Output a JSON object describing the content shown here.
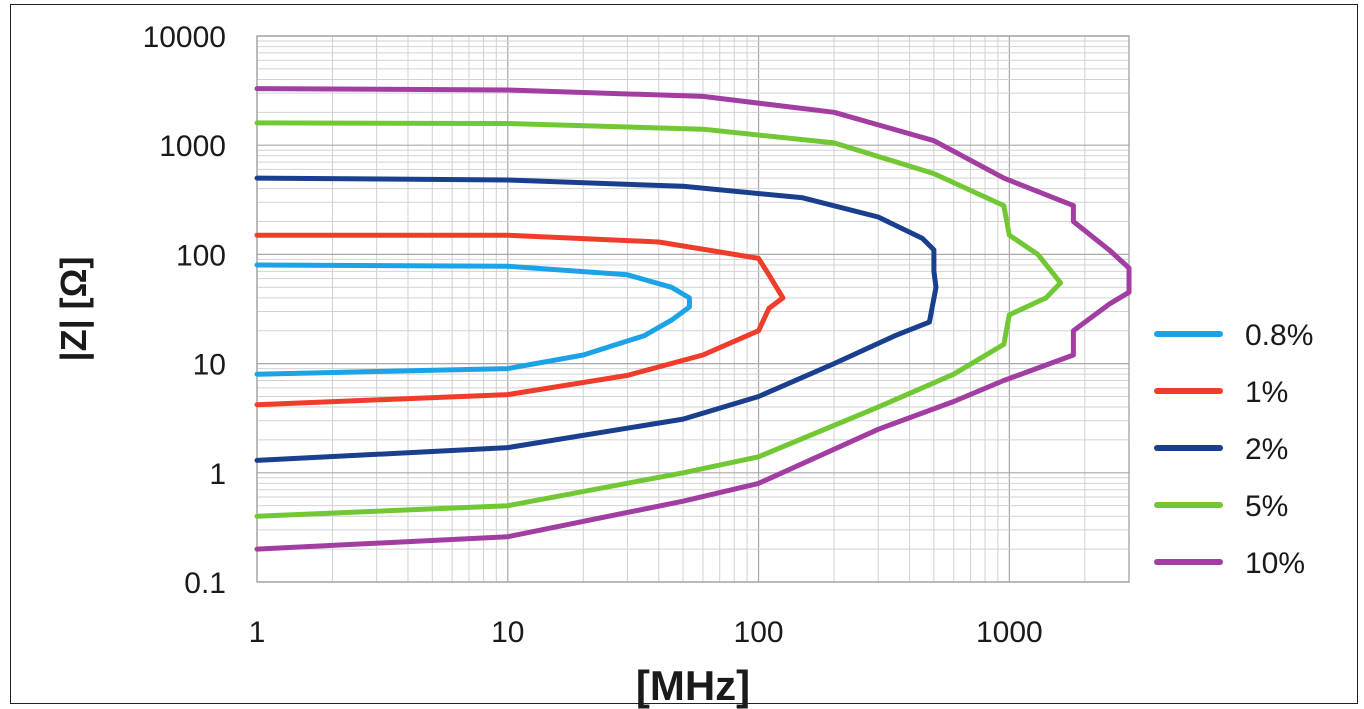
{
  "chart_data": {
    "type": "line",
    "xlabel": "[MHz]",
    "ylabel": "|Z| [Ω]",
    "x_scale": "log",
    "y_scale": "log",
    "xlim": [
      1,
      3000
    ],
    "ylim": [
      0.1,
      10000
    ],
    "grid": true,
    "legend_position": "right",
    "x_ticks": [
      "1",
      "10",
      "100",
      "1000"
    ],
    "y_ticks": [
      "10000",
      "1000",
      "100",
      "10",
      "1",
      "0.1"
    ],
    "series": [
      {
        "name": "0.8%",
        "color": "#1ba3e6",
        "upper": [
          [
            1,
            80
          ],
          [
            10,
            78
          ],
          [
            30,
            65
          ],
          [
            45,
            50
          ],
          [
            53,
            40
          ]
        ],
        "lower": [
          [
            1,
            8
          ],
          [
            10,
            9
          ],
          [
            20,
            12
          ],
          [
            35,
            18
          ],
          [
            45,
            25
          ],
          [
            53,
            33
          ]
        ]
      },
      {
        "name": "1%",
        "color": "#f03c2a",
        "upper": [
          [
            1,
            150
          ],
          [
            10,
            150
          ],
          [
            40,
            130
          ],
          [
            80,
            100
          ],
          [
            100,
            92
          ],
          [
            110,
            65
          ],
          [
            125,
            40
          ]
        ],
        "lower": [
          [
            1,
            4.2
          ],
          [
            10,
            5.2
          ],
          [
            30,
            7.8
          ],
          [
            60,
            12
          ],
          [
            100,
            20
          ],
          [
            110,
            32
          ],
          [
            125,
            40
          ]
        ]
      },
      {
        "name": "2%",
        "color": "#1a3f8e",
        "upper": [
          [
            1,
            500
          ],
          [
            10,
            480
          ],
          [
            50,
            420
          ],
          [
            150,
            330
          ],
          [
            300,
            220
          ],
          [
            450,
            140
          ],
          [
            500,
            110
          ],
          [
            500,
            70
          ],
          [
            510,
            50
          ]
        ],
        "lower": [
          [
            1,
            1.3
          ],
          [
            10,
            1.7
          ],
          [
            50,
            3.1
          ],
          [
            100,
            5
          ],
          [
            200,
            10
          ],
          [
            350,
            18
          ],
          [
            480,
            24
          ],
          [
            510,
            50
          ]
        ]
      },
      {
        "name": "5%",
        "color": "#72c834",
        "upper": [
          [
            1,
            1600
          ],
          [
            10,
            1580
          ],
          [
            60,
            1400
          ],
          [
            200,
            1050
          ],
          [
            500,
            550
          ],
          [
            950,
            280
          ],
          [
            1000,
            150
          ],
          [
            1300,
            100
          ],
          [
            1600,
            55
          ]
        ],
        "lower": [
          [
            1,
            0.4
          ],
          [
            10,
            0.5
          ],
          [
            50,
            1
          ],
          [
            100,
            1.4
          ],
          [
            300,
            4
          ],
          [
            600,
            8
          ],
          [
            950,
            15
          ],
          [
            1000,
            28
          ],
          [
            1400,
            40
          ],
          [
            1600,
            55
          ]
        ]
      },
      {
        "name": "10%",
        "color": "#a23da1",
        "upper": [
          [
            1,
            3300
          ],
          [
            10,
            3200
          ],
          [
            60,
            2800
          ],
          [
            200,
            2000
          ],
          [
            500,
            1100
          ],
          [
            950,
            500
          ],
          [
            1800,
            280
          ],
          [
            1800,
            200
          ],
          [
            2500,
            110
          ],
          [
            3000,
            75
          ]
        ],
        "lower": [
          [
            1,
            0.2
          ],
          [
            10,
            0.26
          ],
          [
            50,
            0.55
          ],
          [
            100,
            0.8
          ],
          [
            300,
            2.5
          ],
          [
            600,
            4.5
          ],
          [
            950,
            7
          ],
          [
            1800,
            12
          ],
          [
            1800,
            20
          ],
          [
            2500,
            35
          ],
          [
            3000,
            45
          ]
        ]
      }
    ]
  }
}
